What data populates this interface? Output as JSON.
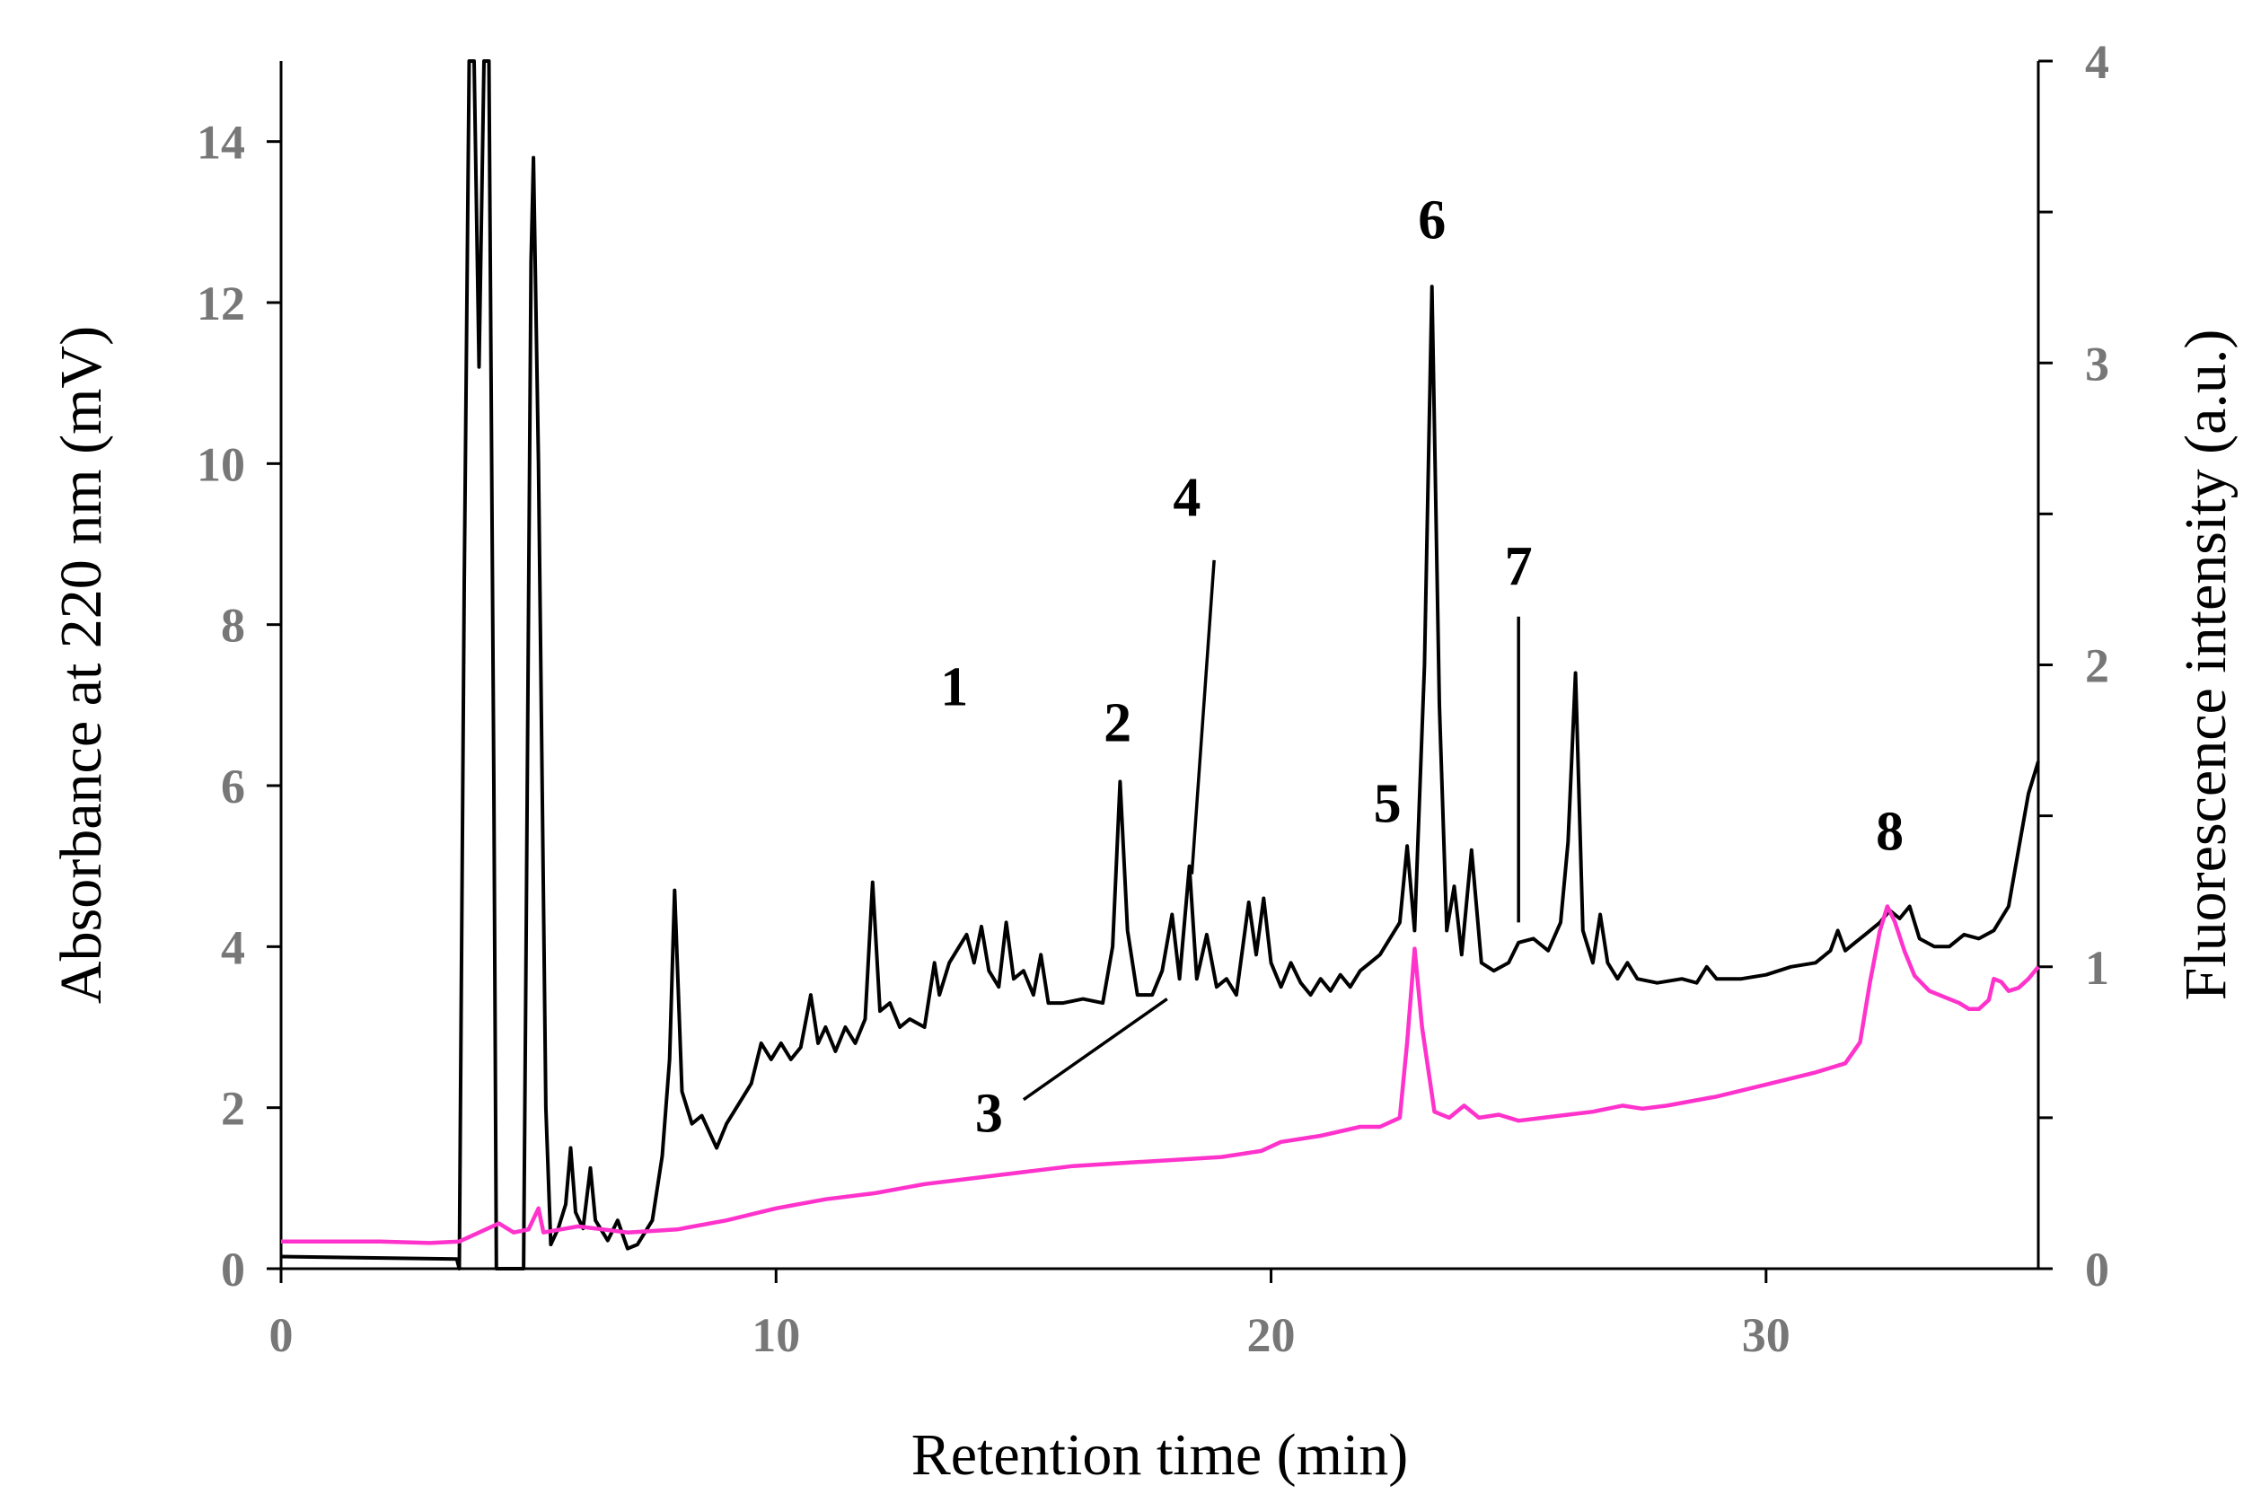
{
  "chart_data": {
    "type": "line",
    "xlabel": "Retention time (min)",
    "ylabel_left": "Absorbance at 220 nm (mV)",
    "ylabel_right": "Fluorescence intensity (a.u.)",
    "xlim": [
      0,
      35.5
    ],
    "ylim_left": [
      0,
      15
    ],
    "ylim_right": [
      0,
      4
    ],
    "x_ticks": [
      0,
      10,
      20,
      30
    ],
    "y_left_ticks": [
      0,
      2,
      4,
      6,
      8,
      10,
      12,
      14
    ],
    "y_right_ticks": [
      0,
      1,
      2,
      3,
      4
    ],
    "y_right_minor_step": 0.5,
    "grid": false,
    "series": [
      {
        "name": "Absorbance at 220 nm",
        "axis": "left",
        "color": "#000000",
        "points": [
          [
            0,
            0.15
          ],
          [
            3.55,
            0.12
          ],
          [
            3.6,
            0
          ],
          [
            3.7,
            8.5
          ],
          [
            3.8,
            15
          ],
          [
            3.9,
            15
          ],
          [
            4.0,
            11.2
          ],
          [
            4.1,
            15
          ],
          [
            4.2,
            15
          ],
          [
            4.3,
            6
          ],
          [
            4.35,
            0
          ],
          [
            4.9,
            0
          ],
          [
            4.95,
            4
          ],
          [
            5.05,
            12.5
          ],
          [
            5.1,
            13.8
          ],
          [
            5.2,
            10
          ],
          [
            5.35,
            2
          ],
          [
            5.45,
            0.3
          ],
          [
            5.6,
            0.5
          ],
          [
            5.75,
            0.8
          ],
          [
            5.85,
            1.5
          ],
          [
            5.95,
            0.7
          ],
          [
            6.1,
            0.5
          ],
          [
            6.25,
            1.25
          ],
          [
            6.35,
            0.6
          ],
          [
            6.6,
            0.35
          ],
          [
            6.8,
            0.6
          ],
          [
            7.0,
            0.25
          ],
          [
            7.2,
            0.3
          ],
          [
            7.5,
            0.6
          ],
          [
            7.7,
            1.4
          ],
          [
            7.85,
            2.6
          ],
          [
            7.95,
            4.7
          ],
          [
            8.1,
            2.2
          ],
          [
            8.3,
            1.8
          ],
          [
            8.5,
            1.9
          ],
          [
            8.8,
            1.5
          ],
          [
            9.0,
            1.8
          ],
          [
            9.3,
            2.1
          ],
          [
            9.5,
            2.3
          ],
          [
            9.7,
            2.8
          ],
          [
            9.9,
            2.6
          ],
          [
            10.1,
            2.8
          ],
          [
            10.3,
            2.6
          ],
          [
            10.5,
            2.75
          ],
          [
            10.7,
            3.4
          ],
          [
            10.85,
            2.8
          ],
          [
            11.0,
            3.0
          ],
          [
            11.2,
            2.7
          ],
          [
            11.4,
            3.0
          ],
          [
            11.6,
            2.8
          ],
          [
            11.8,
            3.1
          ],
          [
            11.95,
            4.8
          ],
          [
            12.1,
            3.2
          ],
          [
            12.3,
            3.3
          ],
          [
            12.5,
            3.0
          ],
          [
            12.7,
            3.1
          ],
          [
            13.0,
            3.0
          ],
          [
            13.2,
            3.8
          ],
          [
            13.3,
            3.4
          ],
          [
            13.5,
            3.8
          ],
          [
            13.7,
            4.0
          ],
          [
            13.85,
            4.15
          ],
          [
            14.0,
            3.8
          ],
          [
            14.15,
            4.25
          ],
          [
            14.3,
            3.7
          ],
          [
            14.5,
            3.5
          ],
          [
            14.65,
            4.3
          ],
          [
            14.8,
            3.6
          ],
          [
            15.0,
            3.7
          ],
          [
            15.2,
            3.4
          ],
          [
            15.35,
            3.9
          ],
          [
            15.5,
            3.3
          ],
          [
            15.8,
            3.3
          ],
          [
            16.2,
            3.35
          ],
          [
            16.6,
            3.3
          ],
          [
            16.8,
            4.0
          ],
          [
            16.95,
            6.05
          ],
          [
            17.1,
            4.2
          ],
          [
            17.3,
            3.4
          ],
          [
            17.6,
            3.4
          ],
          [
            17.8,
            3.7
          ],
          [
            18.0,
            4.4
          ],
          [
            18.15,
            3.6
          ],
          [
            18.35,
            5.0
          ],
          [
            18.5,
            3.6
          ],
          [
            18.7,
            4.15
          ],
          [
            18.9,
            3.5
          ],
          [
            19.1,
            3.6
          ],
          [
            19.3,
            3.4
          ],
          [
            19.55,
            4.55
          ],
          [
            19.7,
            3.9
          ],
          [
            19.85,
            4.6
          ],
          [
            20.0,
            3.8
          ],
          [
            20.2,
            3.5
          ],
          [
            20.4,
            3.8
          ],
          [
            20.6,
            3.55
          ],
          [
            20.8,
            3.4
          ],
          [
            21.0,
            3.6
          ],
          [
            21.2,
            3.45
          ],
          [
            21.4,
            3.65
          ],
          [
            21.6,
            3.5
          ],
          [
            21.8,
            3.7
          ],
          [
            22.0,
            3.8
          ],
          [
            22.2,
            3.9
          ],
          [
            22.4,
            4.1
          ],
          [
            22.6,
            4.3
          ],
          [
            22.75,
            5.25
          ],
          [
            22.9,
            4.2
          ],
          [
            23.1,
            7.5
          ],
          [
            23.25,
            12.2
          ],
          [
            23.4,
            7.0
          ],
          [
            23.55,
            4.2
          ],
          [
            23.7,
            4.75
          ],
          [
            23.85,
            3.9
          ],
          [
            24.05,
            5.2
          ],
          [
            24.25,
            3.8
          ],
          [
            24.5,
            3.7
          ],
          [
            24.8,
            3.8
          ],
          [
            25.0,
            4.05
          ],
          [
            25.3,
            4.1
          ],
          [
            25.6,
            3.95
          ],
          [
            25.85,
            4.3
          ],
          [
            26.0,
            5.3
          ],
          [
            26.15,
            7.4
          ],
          [
            26.3,
            4.2
          ],
          [
            26.5,
            3.8
          ],
          [
            26.65,
            4.4
          ],
          [
            26.8,
            3.8
          ],
          [
            27.0,
            3.6
          ],
          [
            27.2,
            3.8
          ],
          [
            27.4,
            3.6
          ],
          [
            27.8,
            3.55
          ],
          [
            28.3,
            3.6
          ],
          [
            28.6,
            3.55
          ],
          [
            28.8,
            3.75
          ],
          [
            29.0,
            3.6
          ],
          [
            29.5,
            3.6
          ],
          [
            30.0,
            3.65
          ],
          [
            30.5,
            3.75
          ],
          [
            31.0,
            3.8
          ],
          [
            31.3,
            3.95
          ],
          [
            31.45,
            4.2
          ],
          [
            31.6,
            3.95
          ],
          [
            31.8,
            4.05
          ],
          [
            32.0,
            4.15
          ],
          [
            32.3,
            4.3
          ],
          [
            32.5,
            4.45
          ],
          [
            32.7,
            4.35
          ],
          [
            32.9,
            4.5
          ],
          [
            33.1,
            4.1
          ],
          [
            33.4,
            4.0
          ],
          [
            33.7,
            4.0
          ],
          [
            34.0,
            4.15
          ],
          [
            34.3,
            4.1
          ],
          [
            34.6,
            4.2
          ],
          [
            34.9,
            4.5
          ],
          [
            35.1,
            5.2
          ],
          [
            35.3,
            5.9
          ],
          [
            35.5,
            6.3
          ]
        ]
      },
      {
        "name": "Fluorescence intensity",
        "axis": "right",
        "color": "#ff33cc",
        "points": [
          [
            0,
            0.09
          ],
          [
            1,
            0.09
          ],
          [
            2,
            0.09
          ],
          [
            3,
            0.085
          ],
          [
            3.6,
            0.09
          ],
          [
            4.0,
            0.12
          ],
          [
            4.4,
            0.15
          ],
          [
            4.7,
            0.12
          ],
          [
            5.0,
            0.13
          ],
          [
            5.2,
            0.2
          ],
          [
            5.3,
            0.12
          ],
          [
            6,
            0.14
          ],
          [
            7,
            0.12
          ],
          [
            8,
            0.13
          ],
          [
            9,
            0.16
          ],
          [
            10,
            0.2
          ],
          [
            11,
            0.23
          ],
          [
            12,
            0.25
          ],
          [
            13,
            0.28
          ],
          [
            14,
            0.3
          ],
          [
            15,
            0.32
          ],
          [
            16,
            0.34
          ],
          [
            17,
            0.35
          ],
          [
            18,
            0.36
          ],
          [
            19,
            0.37
          ],
          [
            19.8,
            0.39
          ],
          [
            20.2,
            0.42
          ],
          [
            21,
            0.44
          ],
          [
            21.8,
            0.47
          ],
          [
            22.2,
            0.47
          ],
          [
            22.6,
            0.5
          ],
          [
            22.75,
            0.75
          ],
          [
            22.9,
            1.06
          ],
          [
            23.05,
            0.8
          ],
          [
            23.3,
            0.52
          ],
          [
            23.6,
            0.5
          ],
          [
            23.9,
            0.54
          ],
          [
            24.2,
            0.5
          ],
          [
            24.6,
            0.51
          ],
          [
            25.0,
            0.49
          ],
          [
            25.5,
            0.5
          ],
          [
            26.0,
            0.51
          ],
          [
            26.5,
            0.52
          ],
          [
            26.8,
            0.53
          ],
          [
            27.1,
            0.54
          ],
          [
            27.5,
            0.53
          ],
          [
            28,
            0.54
          ],
          [
            29,
            0.57
          ],
          [
            30,
            0.61
          ],
          [
            31,
            0.65
          ],
          [
            31.6,
            0.68
          ],
          [
            31.9,
            0.75
          ],
          [
            32.1,
            0.95
          ],
          [
            32.3,
            1.12
          ],
          [
            32.45,
            1.2
          ],
          [
            32.6,
            1.15
          ],
          [
            32.8,
            1.05
          ],
          [
            33.0,
            0.97
          ],
          [
            33.3,
            0.92
          ],
          [
            33.6,
            0.9
          ],
          [
            33.9,
            0.88
          ],
          [
            34.1,
            0.86
          ],
          [
            34.3,
            0.86
          ],
          [
            34.5,
            0.89
          ],
          [
            34.6,
            0.96
          ],
          [
            34.75,
            0.95
          ],
          [
            34.9,
            0.92
          ],
          [
            35.1,
            0.93
          ],
          [
            35.3,
            0.96
          ],
          [
            35.5,
            1.0
          ]
        ]
      }
    ],
    "annotations": [
      {
        "text": "1",
        "x": 13.6,
        "y": 7.0
      },
      {
        "text": "2",
        "x": 16.9,
        "y": 6.55
      },
      {
        "text": "3",
        "x": 14.3,
        "y": 1.7
      },
      {
        "text": "4",
        "x": 18.3,
        "y": 9.35
      },
      {
        "text": "5",
        "x": 22.35,
        "y": 5.55
      },
      {
        "text": "6",
        "x": 23.25,
        "y": 12.8
      },
      {
        "text": "7",
        "x": 25.0,
        "y": 8.5
      },
      {
        "text": "8",
        "x": 32.5,
        "y": 5.2
      }
    ],
    "leader_lines": [
      {
        "from": [
          15.0,
          2.1
        ],
        "to": [
          17.9,
          3.35
        ]
      },
      {
        "from": [
          18.85,
          8.8
        ],
        "to": [
          18.4,
          4.9
        ]
      },
      {
        "from": [
          25.0,
          8.1
        ],
        "to": [
          25.0,
          4.3
        ]
      }
    ]
  }
}
